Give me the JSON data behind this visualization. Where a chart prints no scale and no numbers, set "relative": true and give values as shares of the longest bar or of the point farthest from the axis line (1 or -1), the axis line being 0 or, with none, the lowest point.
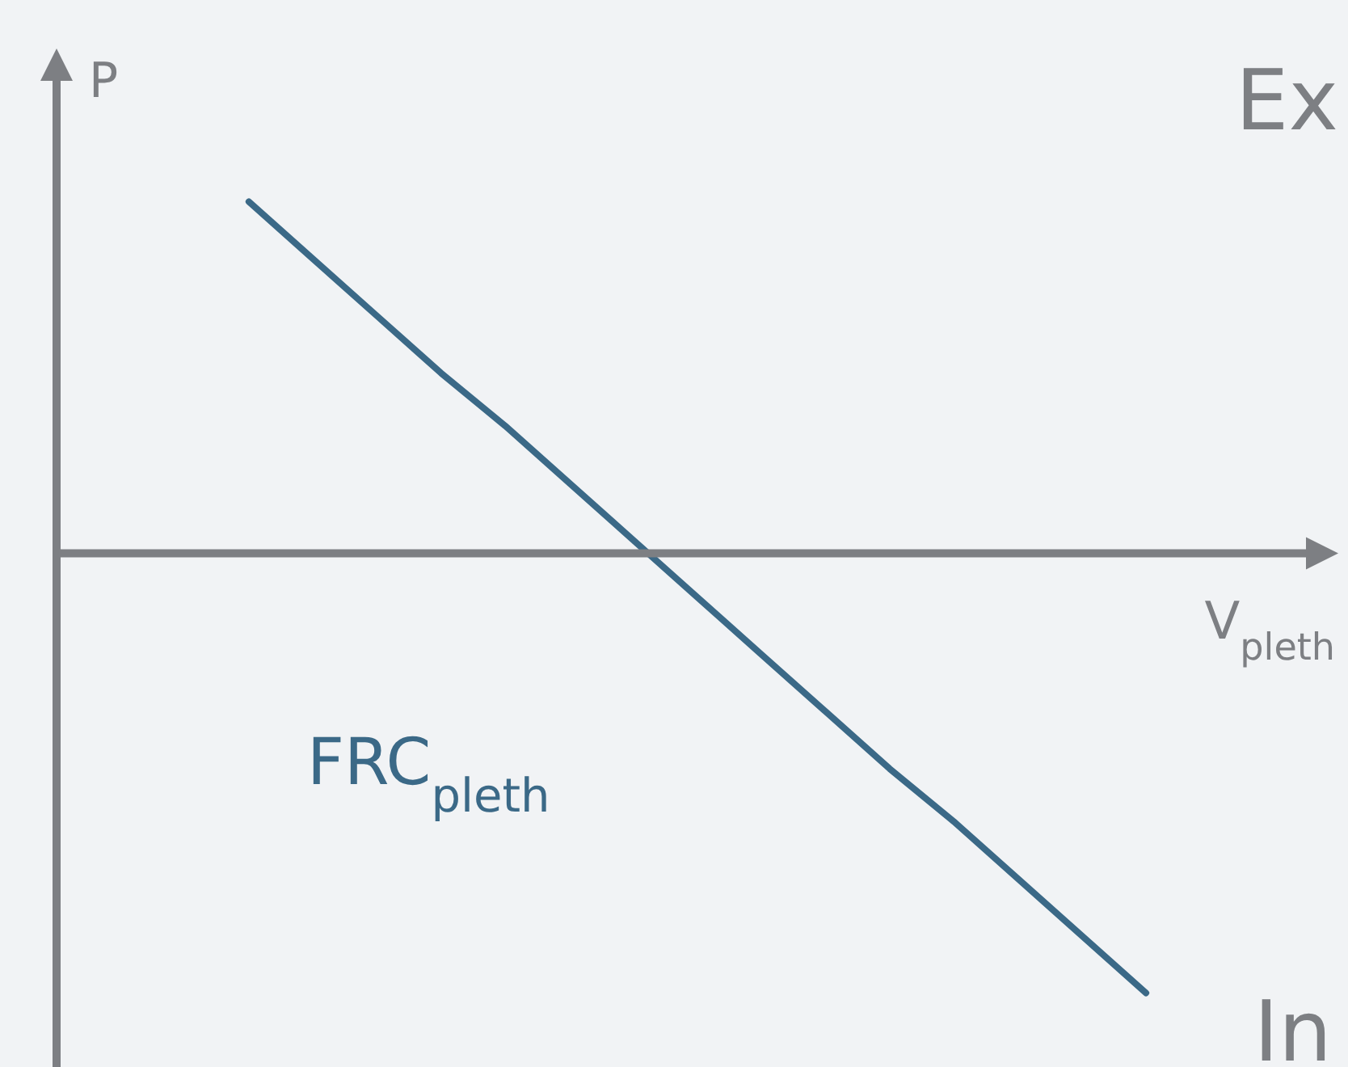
{
  "chart_data": {
    "type": "line",
    "relative": true,
    "ylabel": "P",
    "xlabel": "V$_{pleth}$",
    "categories": [
      null,
      null,
      null,
      null,
      null,
      null,
      null,
      null,
      null,
      null,
      null,
      null,
      null,
      null,
      null,
      null,
      null,
      null,
      null,
      null,
      null
    ],
    "series": [
      {
        "color": "#3b6987",
        "values": [
          null,
          null,
          null,
          0.8,
          0.67,
          0.54,
          0.41,
          0.29,
          0.16,
          0.03,
          -0.1,
          -0.23,
          -0.36,
          -0.49,
          -0.61,
          -0.74,
          -0.87,
          -1,
          null,
          null,
          null
        ]
      }
    ],
    "annotations": [
      "Ex",
      "In",
      "FRC$_{pleth}$"
    ],
    "grid": false,
    "legend": false,
    "tick_labels": false,
    "marker": "none",
    "line_style": "solid"
  }
}
